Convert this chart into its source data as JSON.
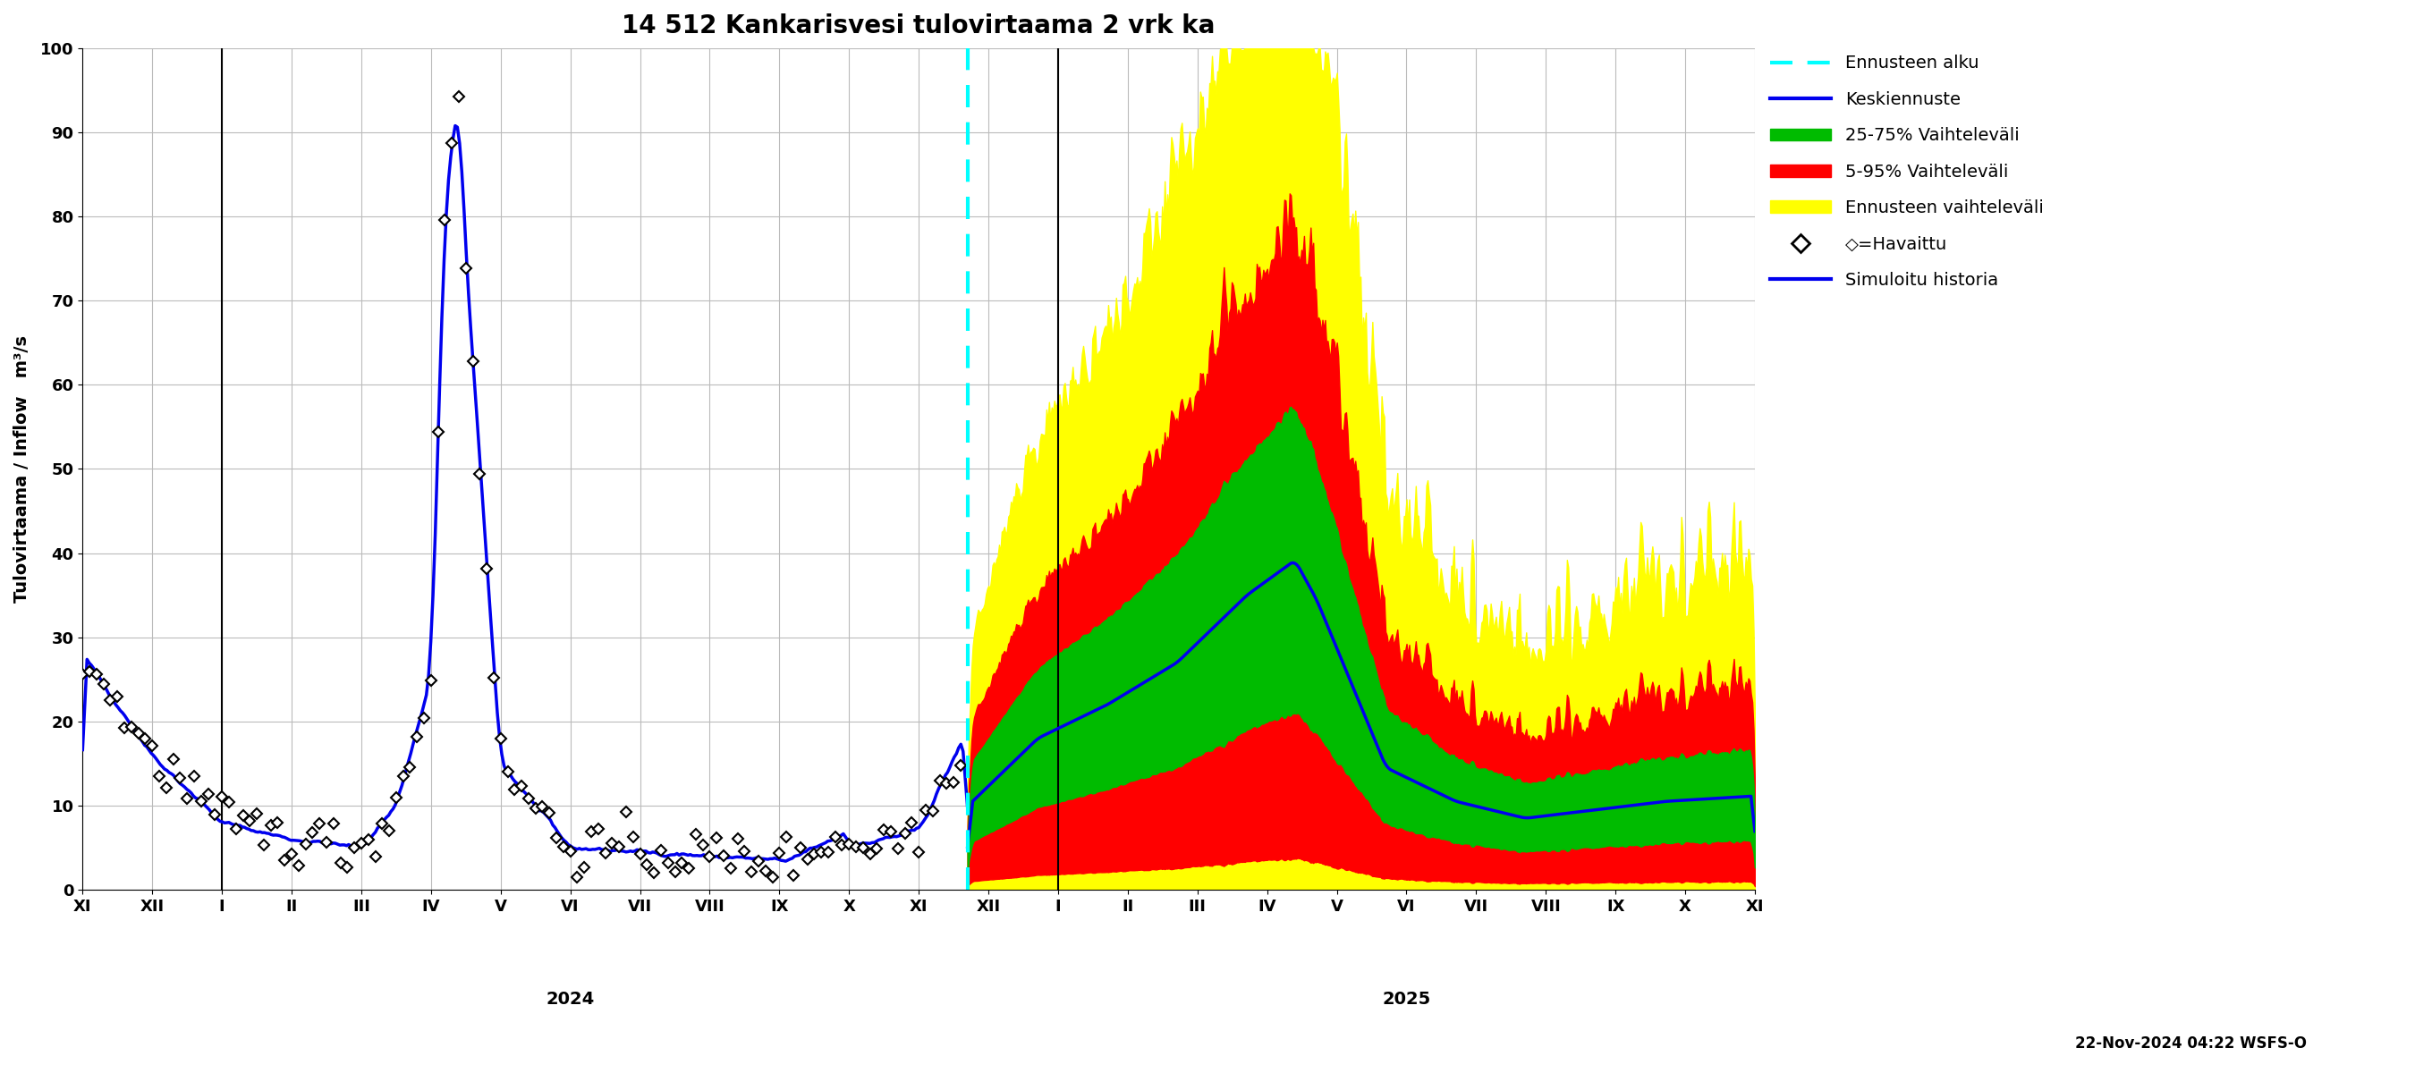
{
  "title": "14 512 Kankarisvesi tulovirtaama 2 vrk ka",
  "ylabel": "Tulovirtaama / Inflow   m³/s",
  "ylim": [
    0,
    100
  ],
  "yticks": [
    0,
    10,
    20,
    30,
    40,
    50,
    60,
    70,
    80,
    90,
    100
  ],
  "year_label_2024": "2024",
  "year_label_2025": "2025",
  "forecast_start_label": "Ennusteen alku",
  "median_label": "Keskiennuste",
  "range_25_75_label": "25-75% Vaihteleväli",
  "range_5_95_label": "5-95% Vaihteleväli",
  "forecast_range_label": "Ennusteen vaihteleväli",
  "observed_label": "◇=Havaittu",
  "simulated_label": "Simuloitu historia",
  "color_forecast_start": "#00FFFF",
  "color_median": "#0000EE",
  "color_25_75": "#00BB00",
  "color_5_95": "#FF0000",
  "color_forecast_range": "#FFFF00",
  "color_simulated": "#0000EE",
  "color_observed": "#000000",
  "timestamp": "22-Nov-2024 04:22 WSFS-O",
  "background_color": "#FFFFFF",
  "grid_color": "#BBBBBB"
}
